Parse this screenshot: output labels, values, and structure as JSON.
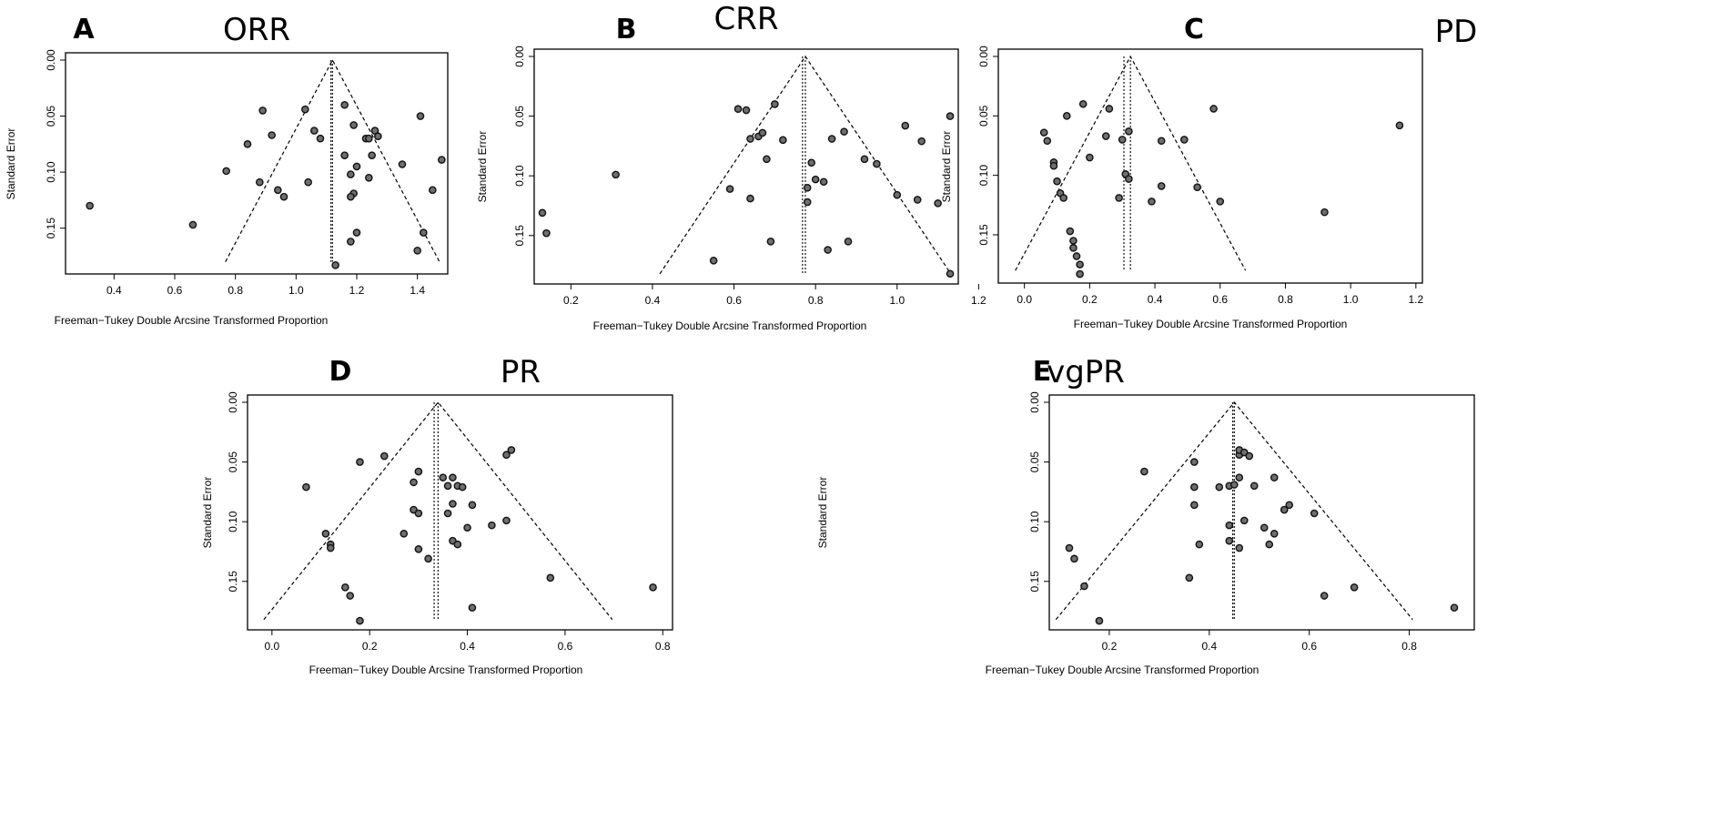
{
  "chart_data": [
    {
      "type": "scatter",
      "panel": "A",
      "title": "ORR",
      "xlabel": "Freeman−Tukey Double Arcsine Transformed Proportion",
      "ylabel": "Standard Error",
      "xlim": [
        0.24,
        1.5
      ],
      "ylim": [
        0.0,
        0.186
      ],
      "xticks": [
        0.4,
        0.6,
        0.8,
        1.0,
        1.2,
        1.4
      ],
      "xtick_labels": [
        "0.4",
        "0.6",
        "0.8",
        "1.0",
        "1.2",
        "1.4"
      ],
      "yticks": [
        0.0,
        0.05,
        0.1,
        0.15
      ],
      "ytick_labels": [
        "0.00",
        "0.05",
        "0.10",
        "0.15"
      ],
      "center": 1.12,
      "center2": 1.115,
      "funnel_base_se": 0.18,
      "points": [
        [
          0.32,
          0.13
        ],
        [
          0.66,
          0.147
        ],
        [
          0.77,
          0.099
        ],
        [
          0.84,
          0.075
        ],
        [
          0.89,
          0.045
        ],
        [
          0.88,
          0.109
        ],
        [
          0.92,
          0.067
        ],
        [
          0.94,
          0.116
        ],
        [
          0.96,
          0.122
        ],
        [
          1.03,
          0.044
        ],
        [
          1.04,
          0.109
        ],
        [
          1.06,
          0.063
        ],
        [
          1.08,
          0.07
        ],
        [
          1.16,
          0.04
        ],
        [
          1.19,
          0.058
        ],
        [
          1.16,
          0.085
        ],
        [
          1.23,
          0.07
        ],
        [
          1.24,
          0.07
        ],
        [
          1.26,
          0.063
        ],
        [
          1.25,
          0.085
        ],
        [
          1.18,
          0.102
        ],
        [
          1.2,
          0.095
        ],
        [
          1.24,
          0.105
        ],
        [
          1.27,
          0.068
        ],
        [
          1.19,
          0.119
        ],
        [
          1.18,
          0.122
        ],
        [
          1.2,
          0.154
        ],
        [
          1.18,
          0.162
        ],
        [
          1.13,
          0.183
        ],
        [
          1.41,
          0.05
        ],
        [
          1.35,
          0.093
        ],
        [
          1.45,
          0.116
        ],
        [
          1.48,
          0.089
        ],
        [
          1.42,
          0.154
        ],
        [
          1.4,
          0.17
        ]
      ]
    },
    {
      "type": "scatter",
      "panel": "B",
      "title": "CRR",
      "xlabel": "Freeman−Tukey Double Arcsine Transformed Proportion",
      "ylabel": "Standard Error",
      "xlim": [
        0.11,
        1.15
      ],
      "ylim": [
        0.0,
        0.186
      ],
      "xticks": [
        0.2,
        0.4,
        0.6,
        0.8,
        1.0,
        1.2
      ],
      "xtick_labels": [
        "0.2",
        "0.4",
        "0.6",
        "0.8",
        "1.0",
        "1.2"
      ],
      "yticks": [
        0.0,
        0.05,
        0.1,
        0.15
      ],
      "ytick_labels": [
        "0.00",
        "0.05",
        "0.10",
        "0.15"
      ],
      "center": 0.775,
      "center2": 0.768,
      "funnel_base_se": 0.182,
      "points": [
        [
          0.13,
          0.131
        ],
        [
          0.14,
          0.148
        ],
        [
          0.31,
          0.099
        ],
        [
          0.55,
          0.171
        ],
        [
          0.59,
          0.111
        ],
        [
          0.61,
          0.044
        ],
        [
          0.63,
          0.045
        ],
        [
          0.7,
          0.04
        ],
        [
          0.64,
          0.069
        ],
        [
          0.66,
          0.067
        ],
        [
          0.67,
          0.064
        ],
        [
          0.72,
          0.07
        ],
        [
          0.68,
          0.086
        ],
        [
          0.64,
          0.119
        ],
        [
          0.69,
          0.155
        ],
        [
          0.79,
          0.089
        ],
        [
          0.8,
          0.103
        ],
        [
          0.78,
          0.11
        ],
        [
          0.82,
          0.105
        ],
        [
          0.78,
          0.122
        ],
        [
          0.84,
          0.069
        ],
        [
          0.87,
          0.063
        ],
        [
          0.92,
          0.086
        ],
        [
          0.95,
          0.09
        ],
        [
          0.83,
          0.162
        ],
        [
          0.88,
          0.155
        ],
        [
          1.02,
          0.058
        ],
        [
          1.06,
          0.071
        ],
        [
          1.0,
          0.116
        ],
        [
          1.05,
          0.12
        ],
        [
          1.1,
          0.123
        ],
        [
          1.13,
          0.05
        ],
        [
          1.13,
          0.182
        ]
      ]
    },
    {
      "type": "scatter",
      "panel": "C",
      "title": "PD",
      "xlabel": "Freeman−Tukey Double Arcsine Transformed Proportion",
      "ylabel": "Standard Error",
      "xlim": [
        -0.08,
        1.22
      ],
      "ylim": [
        0.0,
        0.186
      ],
      "xticks": [
        0.0,
        0.2,
        0.4,
        0.6,
        0.8,
        1.0,
        1.2
      ],
      "xtick_labels": [
        "0.0",
        "0.2",
        "0.4",
        "0.6",
        "0.8",
        "1.0",
        "1.2"
      ],
      "yticks": [
        0.0,
        0.05,
        0.1,
        0.15
      ],
      "ytick_labels": [
        "0.00",
        "0.05",
        "0.10",
        "0.15"
      ],
      "center": 0.325,
      "center2": 0.305,
      "funnel_base_se": 0.18,
      "points": [
        [
          0.06,
          0.064
        ],
        [
          0.07,
          0.071
        ],
        [
          0.09,
          0.089
        ],
        [
          0.09,
          0.092
        ],
        [
          0.1,
          0.105
        ],
        [
          0.11,
          0.115
        ],
        [
          0.12,
          0.119
        ],
        [
          0.13,
          0.05
        ],
        [
          0.18,
          0.04
        ],
        [
          0.2,
          0.085
        ],
        [
          0.14,
          0.147
        ],
        [
          0.15,
          0.155
        ],
        [
          0.15,
          0.161
        ],
        [
          0.16,
          0.168
        ],
        [
          0.17,
          0.175
        ],
        [
          0.17,
          0.183
        ],
        [
          0.26,
          0.044
        ],
        [
          0.25,
          0.067
        ],
        [
          0.3,
          0.07
        ],
        [
          0.32,
          0.063
        ],
        [
          0.31,
          0.099
        ],
        [
          0.32,
          0.103
        ],
        [
          0.29,
          0.119
        ],
        [
          0.42,
          0.071
        ],
        [
          0.42,
          0.109
        ],
        [
          0.39,
          0.122
        ],
        [
          0.49,
          0.07
        ],
        [
          0.53,
          0.11
        ],
        [
          0.58,
          0.044
        ],
        [
          0.6,
          0.122
        ],
        [
          0.92,
          0.131
        ],
        [
          1.15,
          0.058
        ]
      ]
    },
    {
      "type": "scatter",
      "panel": "D",
      "title": "PR",
      "xlabel": "Freeman−Tukey Double Arcsine Transformed Proportion",
      "ylabel": "Standard Error",
      "xlim": [
        -0.05,
        0.82
      ],
      "ylim": [
        0.0,
        0.186
      ],
      "xticks": [
        0.0,
        0.2,
        0.4,
        0.6,
        0.8
      ],
      "xtick_labels": [
        "0.0",
        "0.2",
        "0.4",
        "0.6",
        "0.8"
      ],
      "yticks": [
        0.0,
        0.05,
        0.1,
        0.15
      ],
      "ytick_labels": [
        "0.00",
        "0.05",
        "0.10",
        "0.15"
      ],
      "center": 0.34,
      "center2": 0.332,
      "funnel_base_se": 0.182,
      "points": [
        [
          0.07,
          0.071
        ],
        [
          0.11,
          0.11
        ],
        [
          0.12,
          0.119
        ],
        [
          0.12,
          0.122
        ],
        [
          0.18,
          0.05
        ],
        [
          0.23,
          0.045
        ],
        [
          0.15,
          0.155
        ],
        [
          0.16,
          0.162
        ],
        [
          0.18,
          0.183
        ],
        [
          0.29,
          0.067
        ],
        [
          0.3,
          0.058
        ],
        [
          0.29,
          0.09
        ],
        [
          0.3,
          0.093
        ],
        [
          0.27,
          0.11
        ],
        [
          0.3,
          0.123
        ],
        [
          0.32,
          0.131
        ],
        [
          0.35,
          0.063
        ],
        [
          0.37,
          0.063
        ],
        [
          0.36,
          0.07
        ],
        [
          0.38,
          0.07
        ],
        [
          0.39,
          0.071
        ],
        [
          0.37,
          0.085
        ],
        [
          0.41,
          0.086
        ],
        [
          0.36,
          0.093
        ],
        [
          0.37,
          0.116
        ],
        [
          0.38,
          0.119
        ],
        [
          0.4,
          0.105
        ],
        [
          0.45,
          0.103
        ],
        [
          0.48,
          0.099
        ],
        [
          0.48,
          0.044
        ],
        [
          0.49,
          0.04
        ],
        [
          0.41,
          0.172
        ],
        [
          0.57,
          0.147
        ],
        [
          0.78,
          0.155
        ]
      ]
    },
    {
      "type": "scatter",
      "panel": "E",
      "title": "vgPR",
      "xlabel": "Freeman−Tukey Double Arcsine Transformed Proportion",
      "ylabel": "Standard Error",
      "xlim": [
        0.08,
        0.93
      ],
      "ylim": [
        0.0,
        0.186
      ],
      "xticks": [
        0.2,
        0.4,
        0.6,
        0.8
      ],
      "xtick_labels": [
        "0.2",
        "0.4",
        "0.6",
        "0.8"
      ],
      "yticks": [
        0.0,
        0.05,
        0.1,
        0.15
      ],
      "ytick_labels": [
        "0.00",
        "0.05",
        "0.10",
        "0.15"
      ],
      "center": 0.45,
      "center2": 0.447,
      "funnel_base_se": 0.182,
      "points": [
        [
          0.12,
          0.122
        ],
        [
          0.13,
          0.131
        ],
        [
          0.15,
          0.154
        ],
        [
          0.18,
          0.183
        ],
        [
          0.27,
          0.058
        ],
        [
          0.37,
          0.05
        ],
        [
          0.37,
          0.071
        ],
        [
          0.37,
          0.086
        ],
        [
          0.38,
          0.119
        ],
        [
          0.36,
          0.147
        ],
        [
          0.42,
          0.071
        ],
        [
          0.44,
          0.07
        ],
        [
          0.45,
          0.069
        ],
        [
          0.44,
          0.103
        ],
        [
          0.44,
          0.116
        ],
        [
          0.46,
          0.044
        ],
        [
          0.46,
          0.04
        ],
        [
          0.47,
          0.042
        ],
        [
          0.48,
          0.045
        ],
        [
          0.46,
          0.063
        ],
        [
          0.49,
          0.07
        ],
        [
          0.47,
          0.099
        ],
        [
          0.46,
          0.122
        ],
        [
          0.51,
          0.105
        ],
        [
          0.53,
          0.063
        ],
        [
          0.55,
          0.09
        ],
        [
          0.56,
          0.086
        ],
        [
          0.52,
          0.119
        ],
        [
          0.53,
          0.11
        ],
        [
          0.61,
          0.093
        ],
        [
          0.63,
          0.162
        ],
        [
          0.69,
          0.155
        ],
        [
          0.89,
          0.172
        ]
      ]
    }
  ]
}
